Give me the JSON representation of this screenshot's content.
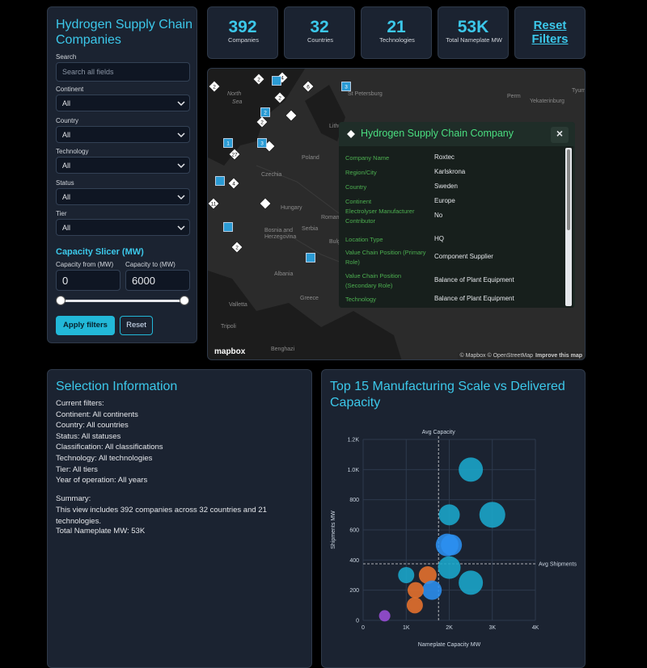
{
  "sidebar": {
    "title": "Hydrogen Supply Chain Companies",
    "search_label": "Search",
    "search_placeholder": "Search all fields",
    "filters": [
      {
        "label": "Continent",
        "value": "All"
      },
      {
        "label": "Country",
        "value": "All"
      },
      {
        "label": "Technology",
        "value": "All"
      },
      {
        "label": "Status",
        "value": "All"
      },
      {
        "label": "Tier",
        "value": "All"
      }
    ],
    "capacity_title": "Capacity Slicer (MW)",
    "from_label": "Capacity from (MW)",
    "from_value": 0,
    "to_label": "Capacity to (MW)",
    "to_value": 6000,
    "apply": "Apply filters",
    "reset": "Reset"
  },
  "kpis": [
    {
      "value": 392,
      "label": "Companies"
    },
    {
      "value": 32,
      "label": "Countries"
    },
    {
      "value": 21,
      "label": "Technologies"
    },
    {
      "value": "53K",
      "label": "Total Nameplate MW"
    }
  ],
  "reset_filters": "Reset Filters",
  "map": {
    "places": [
      "North",
      "Sea",
      "St Petersburg",
      "Perm",
      "Yekaterinburg",
      "Tyumen",
      "Lithuania",
      "Poland",
      "Czechia",
      "Hungary",
      "Romania",
      "Bosnia and",
      "Herzegovina",
      "Serbia",
      "Bulgaria",
      "Albania",
      "Greece",
      "Valletta",
      "Tripoli",
      "Benghazi"
    ],
    "markers": [
      {
        "shape": "diamond",
        "label": "2"
      },
      {
        "shape": "diamond",
        "label": "2"
      },
      {
        "shape": "diamond",
        "label": "4"
      },
      {
        "shape": "diamond",
        "label": "6"
      },
      {
        "shape": "square",
        "label": "3"
      },
      {
        "shape": "diamond",
        "label": "2"
      },
      {
        "shape": "diamond",
        "label": null
      },
      {
        "shape": "diamond",
        "label": "2"
      },
      {
        "shape": "diamond",
        "label": null
      },
      {
        "shape": "diamond",
        "label": "27"
      },
      {
        "shape": "diamond",
        "label": "11"
      },
      {
        "shape": "diamond",
        "label": "4"
      },
      {
        "shape": "diamond",
        "label": null
      },
      {
        "shape": "diamond",
        "label": "2"
      },
      {
        "shape": "square",
        "label": null
      },
      {
        "shape": "square",
        "label": "2"
      },
      {
        "shape": "square",
        "label": "1"
      },
      {
        "shape": "square",
        "label": "3"
      },
      {
        "shape": "square",
        "label": null
      },
      {
        "shape": "square",
        "label": null
      },
      {
        "shape": "square",
        "label": null
      }
    ],
    "popup": {
      "title": "Hydrogen Supply Chain Company",
      "close": "×",
      "rows": [
        [
          "Company Name",
          "Roxtec"
        ],
        [
          "Region/City",
          "Karlskrona"
        ],
        [
          "Country",
          "Sweden"
        ],
        [
          "Continent",
          "Europe"
        ],
        [
          "Electrolyser Manufacturer Contributor",
          "No"
        ],
        [
          "Location Type",
          "HQ"
        ],
        [
          "Value Chain Position (Primary Role)",
          "Component Supplier"
        ],
        [
          "Value Chain Position (Secondary Role)",
          "Balance of Plant Equipment"
        ],
        [
          "Technology",
          "Balance of Plant Equipment"
        ]
      ]
    },
    "logo": "mapbox",
    "attribution": "© Mapbox © OpenStreetMap",
    "improve": "Improve this map"
  },
  "selection": {
    "title": "Selection Information",
    "lines": [
      "Current filters:",
      "Continent: All continents",
      "Country: All countries",
      "Status: All statuses",
      "Classification: All classifications",
      "Technology: All technologies",
      "Tier: All tiers",
      "Year of operation: All years"
    ],
    "summary_title": "Summary:",
    "summary": "This view includes 392 companies across 32 countries and 21 technologies.",
    "total": "Total Nameplate MW: 53K"
  },
  "chart_data": {
    "type": "scatter",
    "title": "Top 15 Manufacturing Scale vs Delivered Capacity",
    "x_label": "Nameplate Capacity MW",
    "y_label": "Shipments MW",
    "x": [
      2500,
      2000,
      3000,
      1950,
      2050,
      2000,
      2500,
      1000,
      1500,
      1600,
      1220,
      1200,
      500
    ],
    "values": [
      1000,
      700,
      700,
      500,
      500,
      350,
      250,
      300,
      300,
      200,
      200,
      100,
      30
    ],
    "sizes": [
      15,
      13,
      16,
      14,
      13,
      14,
      15,
      10,
      11,
      12,
      10,
      10,
      7
    ],
    "colors": [
      "#1aa7cc",
      "#1aa7cc",
      "#1aa7cc",
      "#2b8ff0",
      "#2b8ff0",
      "#1aa7cc",
      "#1aa7cc",
      "#1aa7cc",
      "#e8722c",
      "#2b8ff0",
      "#e8722c",
      "#e8722c",
      "#9b4fd8"
    ],
    "xlim": [
      0,
      4000
    ],
    "xticks": [
      0,
      {
        "value": 1000,
        "label": "1K"
      },
      {
        "value": 2000,
        "label": "2K"
      },
      {
        "value": 3000,
        "label": "3K"
      },
      {
        "value": 4000,
        "label": "4K"
      }
    ],
    "ylim": [
      0,
      1200
    ],
    "yticks": [
      0,
      200,
      400,
      600,
      800,
      {
        "value": 1000,
        "label": "1.0K"
      },
      {
        "value": 1200,
        "label": "1.2K"
      }
    ],
    "grid": true,
    "annotations": [
      {
        "label": "Avg Capacity",
        "value": 1750,
        "axis": "x"
      },
      {
        "label": "Avg Shipments",
        "value": 375,
        "axis": "y"
      }
    ]
  }
}
